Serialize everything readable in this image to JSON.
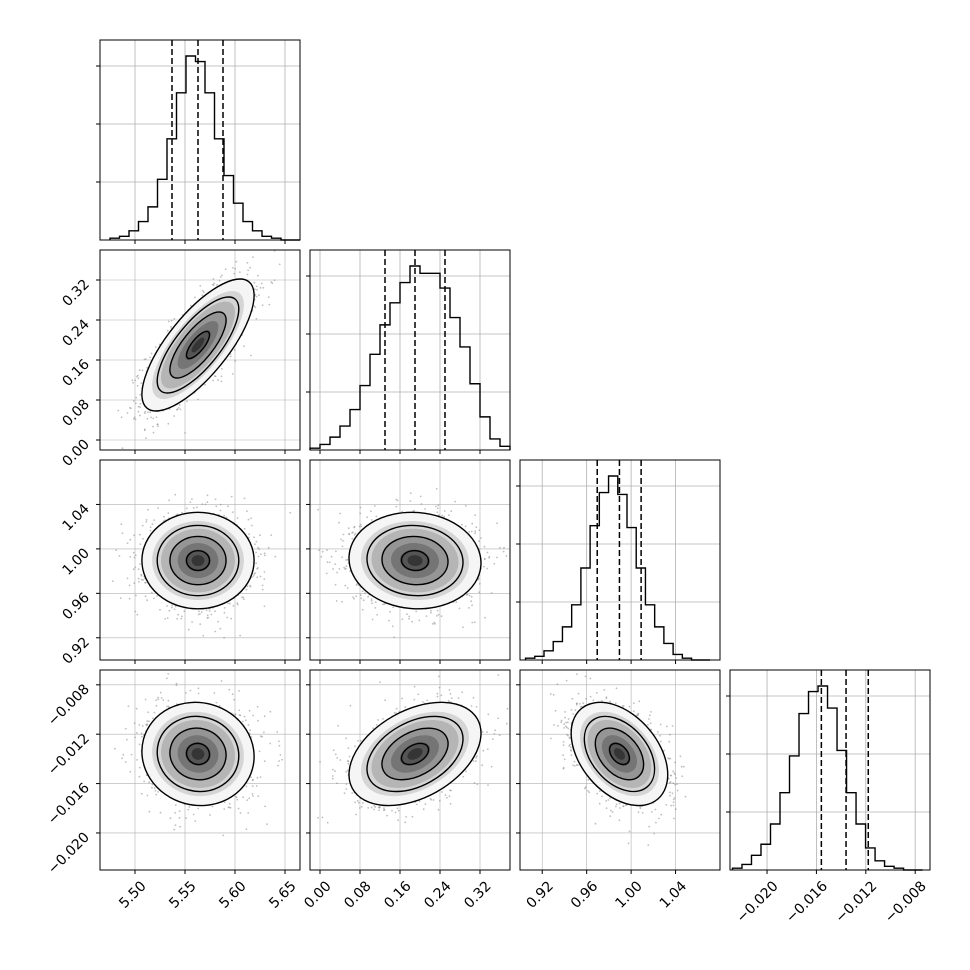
{
  "chart_data": {
    "type": "corner",
    "description_free": true,
    "parameters": [
      {
        "range": [
          5.465,
          5.665
        ],
        "ticks": [
          5.5,
          5.55,
          5.6,
          5.65
        ],
        "tick_labels": [
          "5.50",
          "5.55",
          "5.60",
          "5.65"
        ],
        "quantiles": [
          5.537,
          5.563,
          5.588
        ],
        "hist": {
          "edges_start": 5.475,
          "bin_width": 0.0095,
          "counts": [
            1,
            2,
            5,
            10,
            18,
            33,
            55,
            80,
            100,
            97,
            80,
            55,
            35,
            20,
            10,
            5,
            2,
            1,
            0,
            0
          ]
        }
      },
      {
        "range": [
          -0.02,
          0.38
        ],
        "ticks": [
          0.0,
          0.08,
          0.16,
          0.24,
          0.32
        ],
        "tick_labels": [
          "0.00",
          "0.08",
          "0.16",
          "0.24",
          "0.32"
        ],
        "quantiles": [
          0.13,
          0.19,
          0.25
        ],
        "hist": {
          "edges_start": -0.02,
          "bin_width": 0.02,
          "counts": [
            1,
            3,
            7,
            13,
            22,
            35,
            52,
            68,
            80,
            91,
            100,
            96,
            96,
            88,
            72,
            56,
            36,
            18,
            6,
            2
          ]
        }
      },
      {
        "range": [
          0.9,
          1.08
        ],
        "ticks": [
          0.92,
          0.96,
          1.0,
          1.04
        ],
        "tick_labels": [
          "0.92",
          "0.96",
          "1.00",
          "1.04"
        ],
        "quantiles": [
          0.9695,
          0.9895,
          1.009
        ],
        "hist": {
          "edges_start": 0.905,
          "bin_width": 0.0083,
          "counts": [
            1,
            2,
            5,
            10,
            18,
            30,
            50,
            73,
            91,
            100,
            90,
            72,
            50,
            30,
            18,
            9,
            3,
            1,
            0,
            0
          ]
        }
      },
      {
        "range": [
          -0.023,
          -0.0068
        ],
        "ticks": [
          -0.02,
          -0.016,
          -0.012,
          -0.008
        ],
        "tick_labels": [
          "−0.020",
          "−0.016",
          "−0.012",
          "−0.008"
        ],
        "quantiles": [
          -0.0156,
          -0.0136,
          -0.0118
        ],
        "hist": {
          "edges_start": -0.0228,
          "bin_width": 0.00077,
          "counts": [
            1,
            3,
            8,
            14,
            25,
            42,
            62,
            85,
            97,
            100,
            88,
            65,
            42,
            25,
            12,
            5,
            2,
            1,
            0,
            0
          ]
        }
      }
    ],
    "pairs": [
      {
        "row": 1,
        "col": 0,
        "corr": 0.75
      },
      {
        "row": 2,
        "col": 0,
        "corr": 0.0
      },
      {
        "row": 2,
        "col": 1,
        "corr": -0.05
      },
      {
        "row": 3,
        "col": 0,
        "corr": -0.05
      },
      {
        "row": 3,
        "col": 1,
        "corr": 0.4
      },
      {
        "row": 3,
        "col": 2,
        "corr": -0.4
      }
    ],
    "contour_levels_sigma": [
      0.5,
      1.0,
      1.5,
      2.0
    ],
    "grid": true,
    "colors": {
      "line": "#000000",
      "grid": "#b0b0b0",
      "points": "#8a8a8a",
      "density": "#000000"
    }
  }
}
